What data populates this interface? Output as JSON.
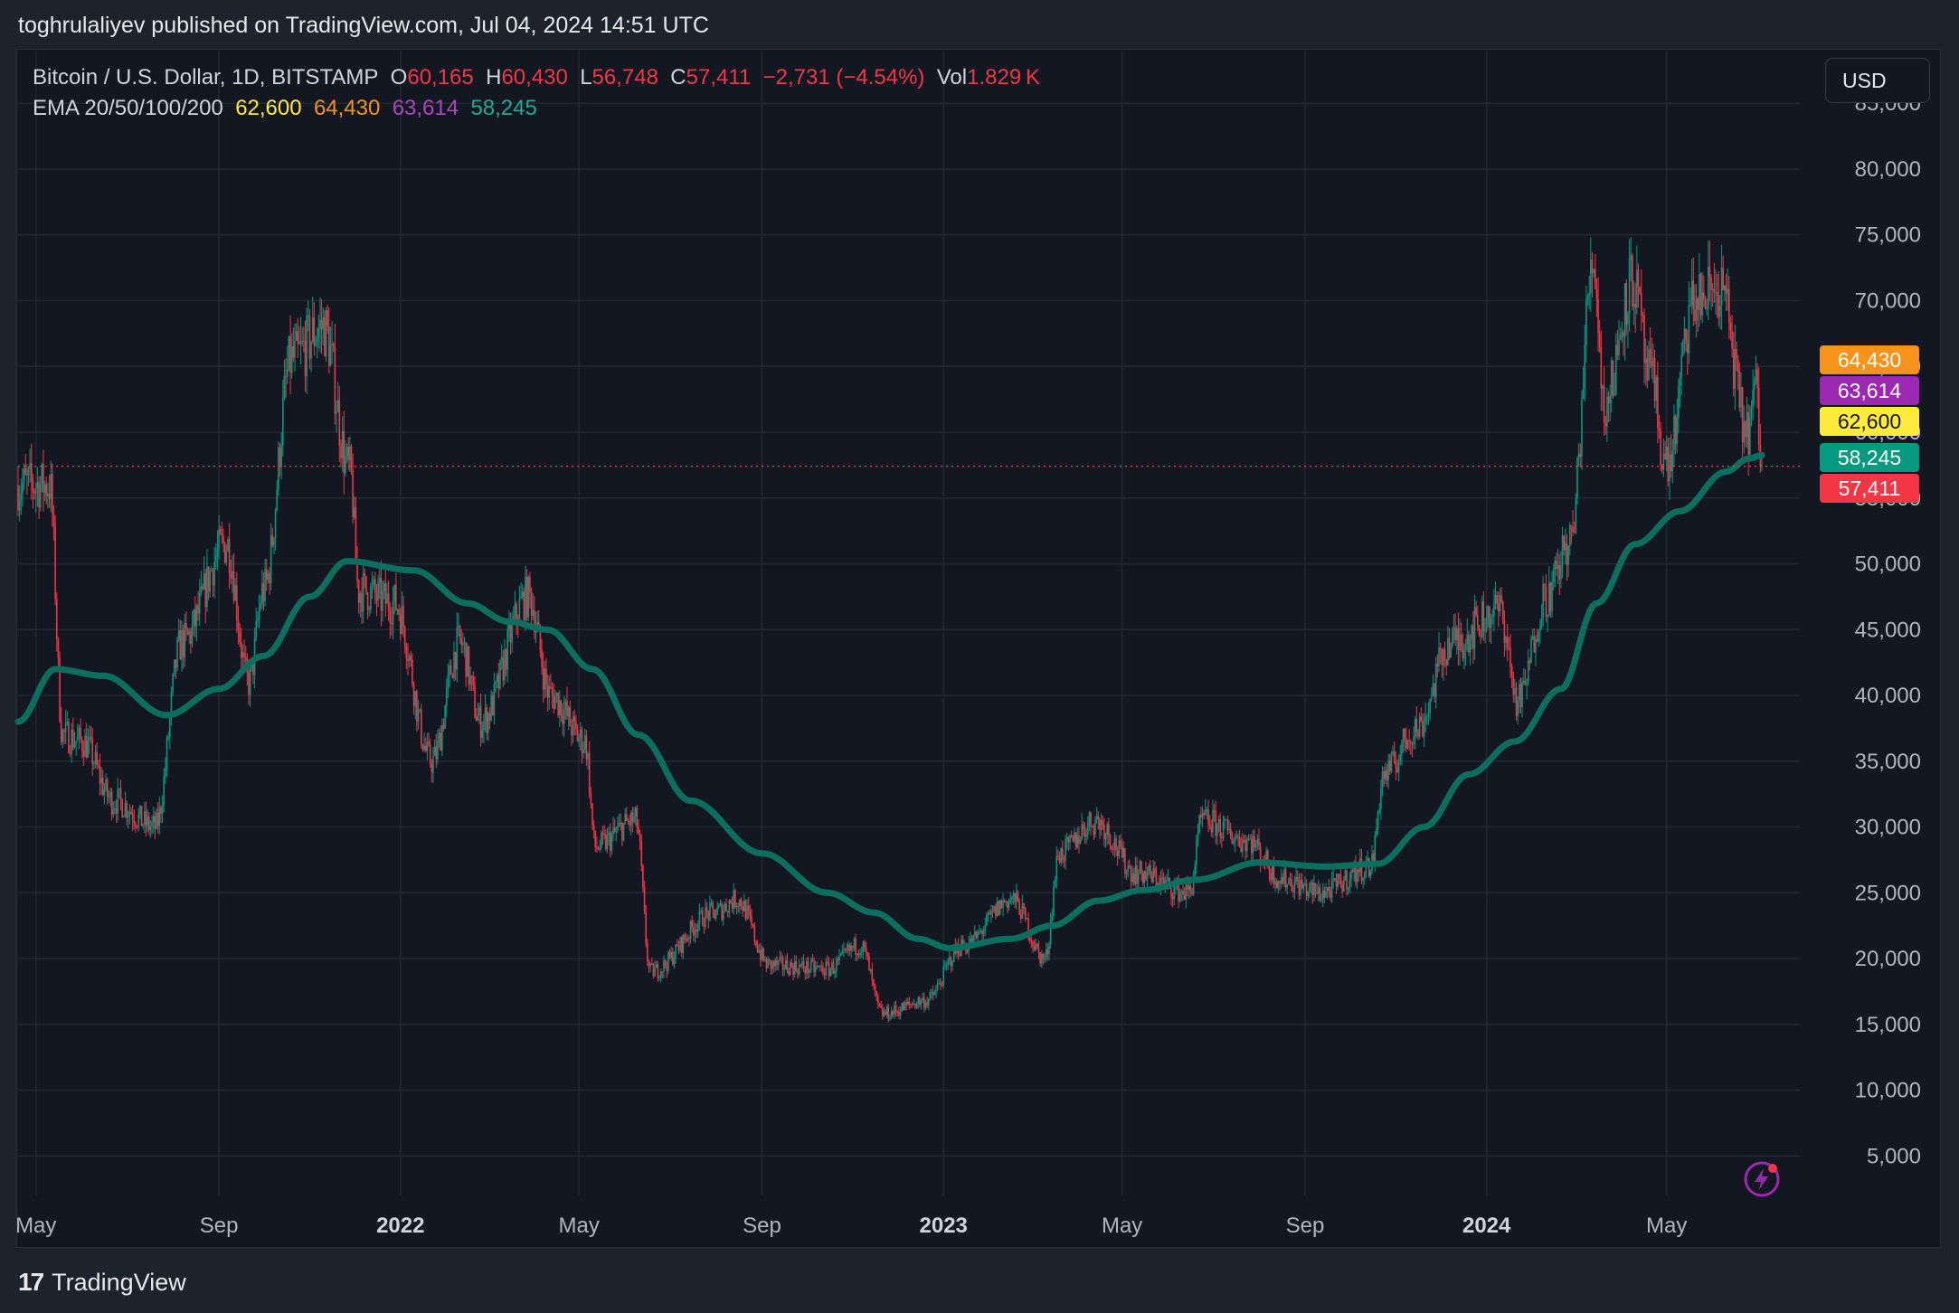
{
  "header": {
    "published": "toghrulaliyev published on TradingView.com, Jul 04, 2024 14:51 UTC"
  },
  "legend": {
    "symbol": "Bitcoin / U.S. Dollar, 1D, BITSTAMP",
    "o_label": "O",
    "o_value": "60,165",
    "h_label": "H",
    "h_value": "60,430",
    "l_label": "L",
    "l_value": "56,748",
    "c_label": "C",
    "c_value": "57,411",
    "change": "−2,731 (−4.54%)",
    "vol_label": "Vol",
    "vol_value": "1.829 K",
    "ema_label": "EMA 20/50/100/200",
    "ema20": "62,600",
    "ema50": "64,430",
    "ema100": "63,614",
    "ema200": "58,245"
  },
  "currency_button": "USD",
  "price_tags": [
    {
      "text": "64,430",
      "value": 64430,
      "color": "#f7931a",
      "text_color": "#ffffff"
    },
    {
      "text": "63,614",
      "value": 63614,
      "color": "#9c27b0",
      "text_color": "#ffffff"
    },
    {
      "text": "62,600",
      "value": 62600,
      "color": "#ffeb3b",
      "text_color": "#131722"
    },
    {
      "text": "58,245",
      "value": 58245,
      "color": "#089981",
      "text_color": "#ffffff"
    },
    {
      "text": "57,411",
      "value": 57411,
      "color": "#f23645",
      "text_color": "#ffffff"
    }
  ],
  "colors": {
    "up": "#089981",
    "down": "#f23645",
    "ema200": "#0b6e5f",
    "grid": "#232733",
    "axis_text": "#b2b5be",
    "last_price_line": "#f23645"
  },
  "footer": {
    "brand": "TradingView"
  },
  "chart_data": {
    "type": "candlestick",
    "title": "",
    "x_start": "2021-04-19",
    "x_end": "2024-07-04",
    "y_range": [
      2000,
      89000
    ],
    "y_ticks": [
      5000,
      10000,
      15000,
      20000,
      25000,
      30000,
      35000,
      40000,
      45000,
      50000,
      55000,
      60000,
      65000,
      70000,
      75000,
      80000,
      85000
    ],
    "y_tick_labels": [
      "5,000",
      "10,000",
      "15,000",
      "20,000",
      "25,000",
      "30,000",
      "35,000",
      "40,000",
      "45,000",
      "50,000",
      "55,000",
      "60,000",
      "65,000",
      "70,000",
      "75,000",
      "80,000",
      "85,000"
    ],
    "x_ticks": [
      {
        "date": "2021-05-01",
        "label": "May",
        "bold": false
      },
      {
        "date": "2021-09-01",
        "label": "Sep",
        "bold": false
      },
      {
        "date": "2022-01-01",
        "label": "2022",
        "bold": true
      },
      {
        "date": "2022-05-01",
        "label": "May",
        "bold": false
      },
      {
        "date": "2022-09-01",
        "label": "Sep",
        "bold": false
      },
      {
        "date": "2023-01-01",
        "label": "2023",
        "bold": true
      },
      {
        "date": "2023-05-01",
        "label": "May",
        "bold": false
      },
      {
        "date": "2023-09-01",
        "label": "Sep",
        "bold": false
      },
      {
        "date": "2024-01-01",
        "label": "2024",
        "bold": true
      },
      {
        "date": "2024-05-01",
        "label": "May",
        "bold": false
      }
    ],
    "last_price": 57411,
    "close_path": [
      [
        "2021-04-19",
        56000
      ],
      [
        "2021-05-10",
        56000
      ],
      [
        "2021-05-19",
        37000
      ],
      [
        "2021-06-01",
        36500
      ],
      [
        "2021-06-22",
        32000
      ],
      [
        "2021-07-20",
        30000
      ],
      [
        "2021-08-07",
        44000
      ],
      [
        "2021-09-06",
        51500
      ],
      [
        "2021-09-21",
        41000
      ],
      [
        "2021-10-01",
        48000
      ],
      [
        "2021-10-20",
        65500
      ],
      [
        "2021-11-10",
        68000
      ],
      [
        "2021-11-28",
        57000
      ],
      [
        "2021-12-04",
        48000
      ],
      [
        "2021-12-28",
        47000
      ],
      [
        "2022-01-22",
        35000
      ],
      [
        "2022-02-10",
        44000
      ],
      [
        "2022-02-24",
        38000
      ],
      [
        "2022-03-28",
        47500
      ],
      [
        "2022-04-12",
        40000
      ],
      [
        "2022-05-05",
        36500
      ],
      [
        "2022-05-12",
        28500
      ],
      [
        "2022-06-08",
        30500
      ],
      [
        "2022-06-18",
        19000
      ],
      [
        "2022-07-31",
        23500
      ],
      [
        "2022-08-15",
        24500
      ],
      [
        "2022-09-06",
        19500
      ],
      [
        "2022-10-15",
        19200
      ],
      [
        "2022-11-06",
        21000
      ],
      [
        "2022-11-21",
        15800
      ],
      [
        "2022-12-20",
        16800
      ],
      [
        "2023-01-14",
        21000
      ],
      [
        "2023-02-16",
        24500
      ],
      [
        "2023-03-10",
        20000
      ],
      [
        "2023-03-20",
        28000
      ],
      [
        "2023-04-13",
        30500
      ],
      [
        "2023-05-11",
        26500
      ],
      [
        "2023-06-15",
        25000
      ],
      [
        "2023-06-24",
        30500
      ],
      [
        "2023-07-24",
        29000
      ],
      [
        "2023-08-17",
        26000
      ],
      [
        "2023-09-11",
        25000
      ],
      [
        "2023-10-15",
        27000
      ],
      [
        "2023-10-24",
        34000
      ],
      [
        "2023-11-15",
        37500
      ],
      [
        "2023-12-08",
        44000
      ],
      [
        "2024-01-10",
        46500
      ],
      [
        "2024-01-22",
        39500
      ],
      [
        "2024-02-10",
        47500
      ],
      [
        "2024-02-26",
        51500
      ],
      [
        "2024-03-13",
        73000
      ],
      [
        "2024-03-20",
        62000
      ],
      [
        "2024-04-08",
        71500
      ],
      [
        "2024-04-20",
        64000
      ],
      [
        "2024-05-01",
        57500
      ],
      [
        "2024-05-20",
        70000
      ],
      [
        "2024-06-06",
        71000
      ],
      [
        "2024-06-24",
        60000
      ],
      [
        "2024-06-30",
        63000
      ],
      [
        "2024-07-04",
        57411
      ]
    ],
    "ema200": [
      [
        "2021-04-19",
        38000
      ],
      [
        "2021-05-14",
        42000
      ],
      [
        "2021-06-15",
        41500
      ],
      [
        "2021-07-28",
        38500
      ],
      [
        "2021-09-01",
        40500
      ],
      [
        "2021-10-01",
        43000
      ],
      [
        "2021-11-01",
        47500
      ],
      [
        "2021-11-26",
        50200
      ],
      [
        "2022-01-10",
        49500
      ],
      [
        "2022-02-15",
        47000
      ],
      [
        "2022-03-15",
        45600
      ],
      [
        "2022-04-10",
        45000
      ],
      [
        "2022-05-10",
        42000
      ],
      [
        "2022-06-10",
        37000
      ],
      [
        "2022-07-15",
        32000
      ],
      [
        "2022-09-01",
        28000
      ],
      [
        "2022-10-15",
        25000
      ],
      [
        "2022-11-15",
        23500
      ],
      [
        "2022-12-15",
        21500
      ],
      [
        "2023-01-05",
        20800
      ],
      [
        "2023-02-15",
        21500
      ],
      [
        "2023-03-15",
        22500
      ],
      [
        "2023-04-15",
        24400
      ],
      [
        "2023-05-15",
        25200
      ],
      [
        "2023-06-20",
        26000
      ],
      [
        "2023-08-01",
        27300
      ],
      [
        "2023-09-15",
        27000
      ],
      [
        "2023-10-20",
        27200
      ],
      [
        "2023-11-20",
        30000
      ],
      [
        "2023-12-20",
        34000
      ],
      [
        "2024-01-20",
        36500
      ],
      [
        "2024-02-20",
        40500
      ],
      [
        "2024-03-15",
        47000
      ],
      [
        "2024-04-10",
        51500
      ],
      [
        "2024-05-10",
        54000
      ],
      [
        "2024-06-10",
        57000
      ],
      [
        "2024-06-25",
        58000
      ],
      [
        "2024-07-04",
        58245
      ]
    ]
  }
}
